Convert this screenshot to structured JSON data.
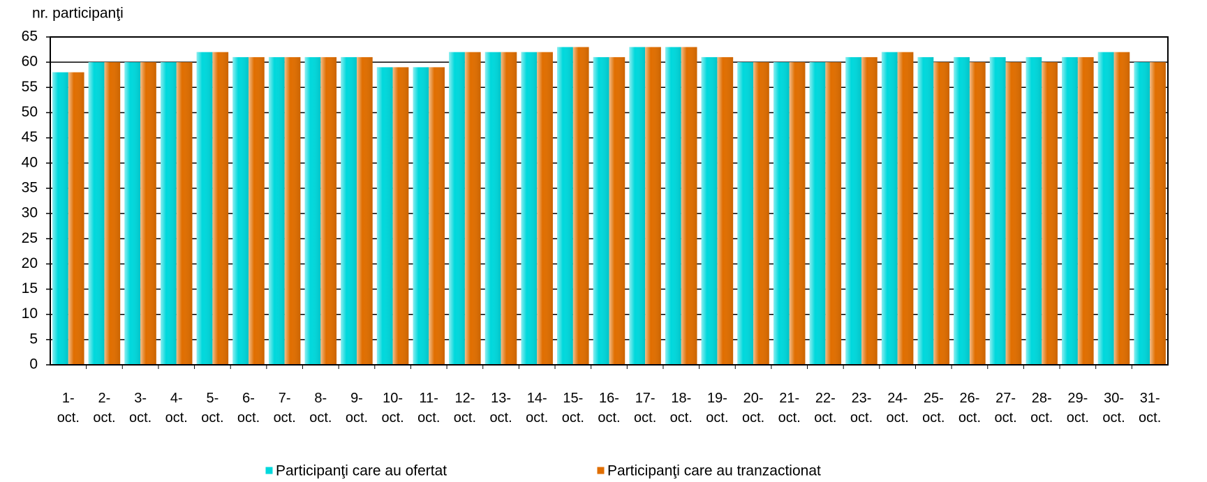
{
  "chart_data": {
    "type": "bar",
    "y_label": "nr. participanţi",
    "categories": [
      "1- oct.",
      "2- oct.",
      "3- oct.",
      "4- oct.",
      "5- oct.",
      "6- oct.",
      "7- oct.",
      "8- oct.",
      "9- oct.",
      "10- oct.",
      "11- oct.",
      "12- oct.",
      "13- oct.",
      "14- oct.",
      "15- oct.",
      "16- oct.",
      "17- oct.",
      "18- oct.",
      "19- oct.",
      "20- oct.",
      "21- oct.",
      "22- oct.",
      "23- oct.",
      "24- oct.",
      "25- oct.",
      "26- oct.",
      "27- oct.",
      "28- oct.",
      "29- oct.",
      "30- oct.",
      "31- oct."
    ],
    "series": [
      {
        "name": "Participanţi care au ofertat",
        "color": "#00d8dc",
        "values": [
          58,
          60,
          60,
          60,
          62,
          61,
          61,
          61,
          61,
          59,
          59,
          62,
          62,
          62,
          63,
          61,
          63,
          63,
          61,
          60,
          60,
          60,
          61,
          62,
          61,
          61,
          61,
          61,
          61,
          62,
          60
        ]
      },
      {
        "name": "Participanţi care au tranzactionat",
        "color": "#e06e00",
        "values": [
          58,
          60,
          60,
          60,
          62,
          61,
          61,
          61,
          61,
          59,
          59,
          62,
          62,
          62,
          63,
          61,
          63,
          63,
          61,
          60,
          60,
          60,
          61,
          62,
          60,
          60,
          60,
          60,
          61,
          62,
          60
        ]
      }
    ],
    "ylim": [
      0,
      65
    ],
    "yticks": [
      0,
      5,
      10,
      15,
      20,
      25,
      30,
      35,
      40,
      45,
      50,
      55,
      60,
      65
    ],
    "grid": true
  }
}
